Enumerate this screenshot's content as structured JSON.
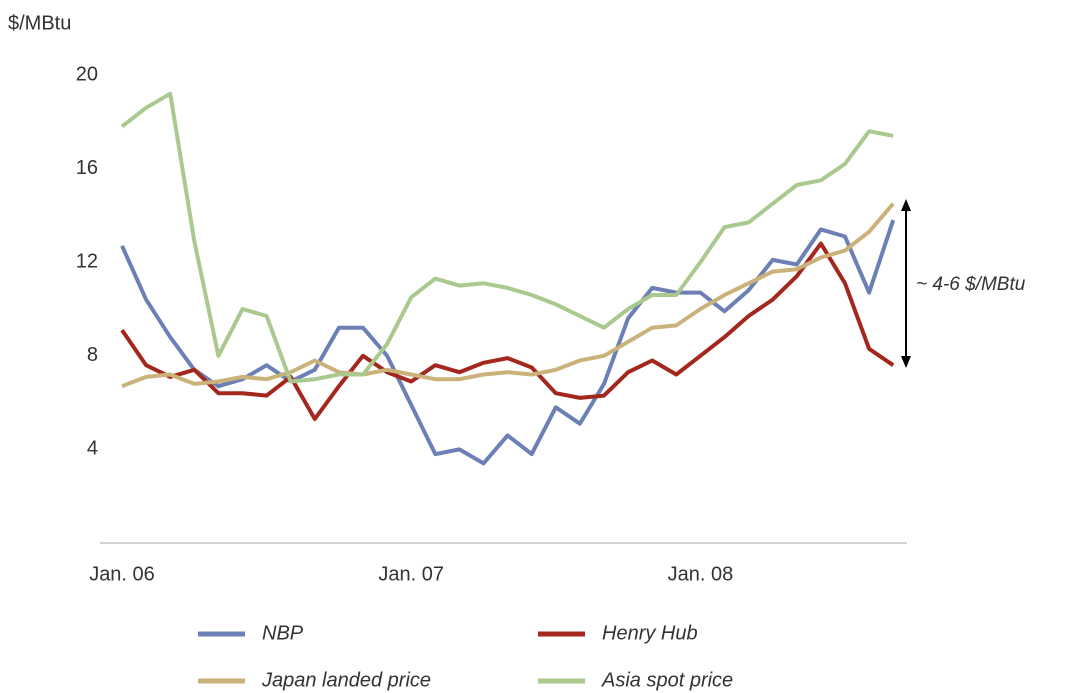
{
  "chart_data": {
    "type": "line",
    "y_label": "$/MBtu",
    "annotation": "~ 4-6 $/MBtu",
    "categories": [
      "Jan. 06",
      null,
      null,
      null,
      null,
      null,
      null,
      null,
      null,
      null,
      null,
      null,
      "Jan. 07",
      null,
      null,
      null,
      null,
      null,
      null,
      null,
      null,
      null,
      null,
      null,
      "Jan. 08",
      null,
      null,
      null,
      null,
      null,
      null,
      null,
      null
    ],
    "series": [
      {
        "name": "NBP",
        "color": "#6c80b6",
        "values": [
          12.7,
          10.4,
          8.8,
          7.4,
          6.7,
          7.0,
          7.6,
          6.9,
          7.4,
          9.2,
          9.2,
          8.0,
          5.9,
          3.8,
          4.0,
          3.4,
          4.6,
          3.8,
          5.8,
          5.1,
          6.8,
          9.6,
          10.9,
          10.7,
          10.7,
          9.9,
          10.8,
          12.1,
          11.9,
          13.4,
          13.1,
          10.7,
          13.8
        ]
      },
      {
        "name": "Henry Hub",
        "color": "#a3271c",
        "values": [
          9.1,
          7.6,
          7.1,
          7.4,
          6.4,
          6.4,
          6.3,
          7.1,
          5.3,
          6.7,
          8.0,
          7.3,
          6.9,
          7.6,
          7.3,
          7.7,
          7.9,
          7.5,
          6.4,
          6.2,
          6.3,
          7.3,
          7.8,
          7.2,
          8.0,
          8.8,
          9.7,
          10.4,
          11.4,
          12.8,
          11.1,
          8.3,
          7.6
        ]
      },
      {
        "name": "Japan landed price",
        "color": "#cbb27b",
        "values": [
          6.7,
          7.1,
          7.2,
          6.8,
          6.9,
          7.1,
          7.0,
          7.3,
          7.8,
          7.3,
          7.2,
          7.4,
          7.2,
          7.0,
          7.0,
          7.2,
          7.3,
          7.2,
          7.4,
          7.8,
          8.0,
          8.6,
          9.2,
          9.3,
          10.0,
          10.6,
          11.1,
          11.6,
          11.7,
          12.2,
          12.5,
          13.3,
          14.5
        ]
      },
      {
        "name": "Asia spot price",
        "color": "#a9c98f",
        "values": [
          17.8,
          18.6,
          19.2,
          12.9,
          8.0,
          10.0,
          9.7,
          6.9,
          7.0,
          7.2,
          7.2,
          8.5,
          10.5,
          11.3,
          11.0,
          11.1,
          10.9,
          10.6,
          10.2,
          9.7,
          9.2,
          10.0,
          10.6,
          10.6,
          12.0,
          13.5,
          13.7,
          14.5,
          15.3,
          15.5,
          16.2,
          17.6,
          17.4
        ]
      }
    ],
    "ylim": [
      0,
      20
    ],
    "yticks": [
      4,
      8,
      12,
      16,
      20
    ],
    "grid": false,
    "legend": "bottom"
  }
}
